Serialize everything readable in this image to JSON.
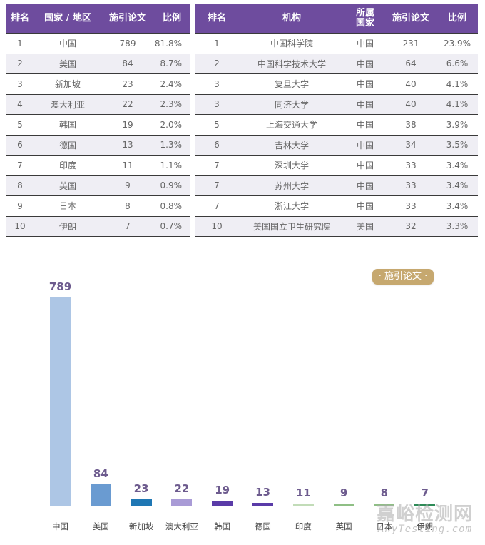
{
  "country_table": {
    "headers": [
      "排名",
      "国家 / 地区",
      "施引论文",
      "比例"
    ],
    "rows": [
      {
        "rank": "1",
        "country": "中国",
        "papers": "789",
        "pct": "81.8%"
      },
      {
        "rank": "2",
        "country": "美国",
        "papers": "84",
        "pct": "8.7%"
      },
      {
        "rank": "3",
        "country": "新加坡",
        "papers": "23",
        "pct": "2.4%"
      },
      {
        "rank": "4",
        "country": "澳大利亚",
        "papers": "22",
        "pct": "2.3%"
      },
      {
        "rank": "5",
        "country": "韩国",
        "papers": "19",
        "pct": "2.0%"
      },
      {
        "rank": "6",
        "country": "德国",
        "papers": "13",
        "pct": "1.3%"
      },
      {
        "rank": "7",
        "country": "印度",
        "papers": "11",
        "pct": "1.1%"
      },
      {
        "rank": "8",
        "country": "英国",
        "papers": "9",
        "pct": "0.9%"
      },
      {
        "rank": "9",
        "country": "日本",
        "papers": "8",
        "pct": "0.8%"
      },
      {
        "rank": "10",
        "country": "伊朗",
        "papers": "7",
        "pct": "0.7%"
      }
    ]
  },
  "institution_table": {
    "headers": [
      "排名",
      "机构",
      "所属国家",
      "施引论文",
      "比例"
    ],
    "header_country_line1": "所属",
    "header_country_line2": "国家",
    "rows": [
      {
        "rank": "1",
        "institution": "中国科学院",
        "country": "中国",
        "papers": "231",
        "pct": "23.9%"
      },
      {
        "rank": "2",
        "institution": "中国科学技术大学",
        "country": "中国",
        "papers": "64",
        "pct": "6.6%"
      },
      {
        "rank": "3",
        "institution": "复旦大学",
        "country": "中国",
        "papers": "40",
        "pct": "4.1%"
      },
      {
        "rank": "3",
        "institution": "同济大学",
        "country": "中国",
        "papers": "40",
        "pct": "4.1%"
      },
      {
        "rank": "5",
        "institution": "上海交通大学",
        "country": "中国",
        "papers": "38",
        "pct": "3.9%"
      },
      {
        "rank": "6",
        "institution": "吉林大学",
        "country": "中国",
        "papers": "34",
        "pct": "3.5%"
      },
      {
        "rank": "7",
        "institution": "深圳大学",
        "country": "中国",
        "papers": "33",
        "pct": "3.4%"
      },
      {
        "rank": "7",
        "institution": "苏州大学",
        "country": "中国",
        "papers": "33",
        "pct": "3.4%"
      },
      {
        "rank": "7",
        "institution": "浙江大学",
        "country": "中国",
        "papers": "33",
        "pct": "3.4%"
      },
      {
        "rank": "10",
        "institution": "美国国立卫生研究院",
        "country": "美国",
        "papers": "32",
        "pct": "3.3%"
      }
    ]
  },
  "chart": {
    "legend_label": "· 施引论文 ·",
    "colors": [
      "#adc6e5",
      "#6a9bd1",
      "#1f77b4",
      "#a99bd6",
      "#5a3ba8",
      "#5a3ba8",
      "#c2dcb8",
      "#8fbf85",
      "#8fbf85",
      "#2e8b57"
    ]
  },
  "watermark": {
    "main": "嘉峪检测网",
    "sub": "AnyTesting.com"
  },
  "chart_data": {
    "type": "bar",
    "title": "",
    "categories": [
      "中国",
      "美国",
      "新加坡",
      "澳大利亚",
      "韩国",
      "德国",
      "印度",
      "英国",
      "日本",
      "伊朗"
    ],
    "values": [
      789,
      84,
      23,
      22,
      19,
      13,
      11,
      9,
      8,
      7
    ],
    "series": [
      {
        "name": "施引论文",
        "values": [
          789,
          84,
          23,
          22,
          19,
          13,
          11,
          9,
          8,
          7
        ]
      }
    ],
    "xlabel": "",
    "ylabel": "",
    "ylim": [
      0,
      789
    ],
    "grid": false,
    "legend_position": "top-right",
    "data_labels": true
  }
}
